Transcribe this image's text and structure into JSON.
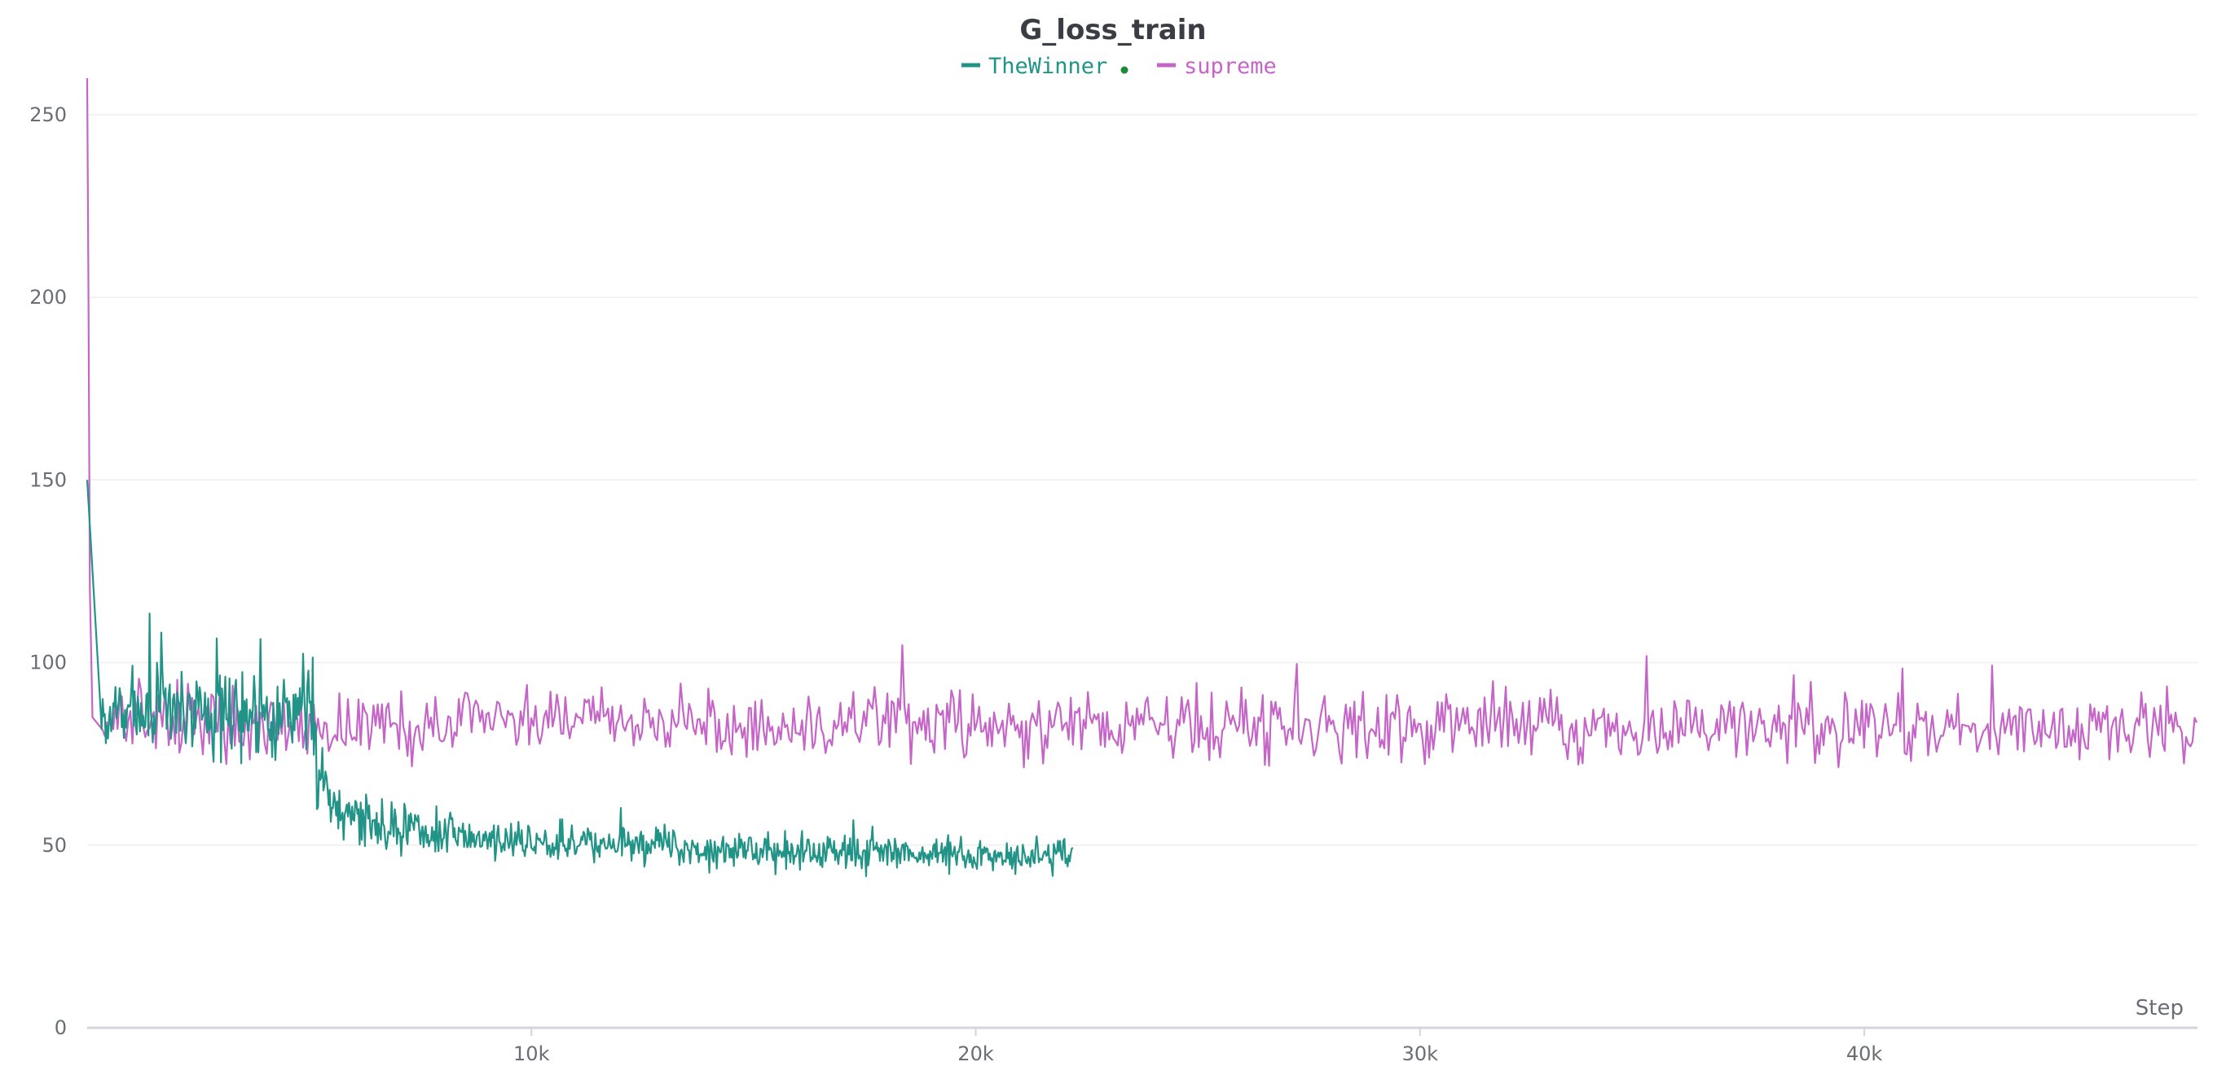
{
  "chart_data": {
    "type": "line",
    "title": "G_loss_train",
    "xlabel": "Step",
    "ylabel": "",
    "xlim": [
      0,
      47500
    ],
    "ylim": [
      0,
      260
    ],
    "x_ticks": [
      10000,
      20000,
      30000,
      40000
    ],
    "x_tick_labels": [
      "10k",
      "20k",
      "30k",
      "40k"
    ],
    "y_ticks": [
      0,
      50,
      100,
      150,
      200,
      250
    ],
    "grid": true,
    "legend_position": "top-center",
    "series": [
      {
        "name": "TheWinner",
        "color": "#229487",
        "x": [
          0,
          150,
          400,
          800,
          1200,
          1600,
          2000,
          2500,
          3000,
          3500,
          4000,
          4400,
          4800,
          5000,
          5200,
          5500,
          6000,
          6500,
          7000,
          7500,
          8000,
          8500,
          9000,
          9500,
          10000,
          11000,
          12000,
          13000,
          14000,
          15000,
          16000,
          17000,
          18000,
          19000,
          20000,
          21000,
          22000,
          22200
        ],
        "y": [
          150,
          85,
          84,
          86,
          87,
          86,
          88,
          87,
          86,
          86,
          87,
          86,
          86,
          84,
          72,
          62,
          58,
          56,
          55,
          54,
          53,
          52.5,
          52,
          51.5,
          51,
          50.5,
          50,
          49.5,
          49,
          48.5,
          48.3,
          48,
          47.8,
          47.5,
          47.3,
          47.2,
          47,
          47
        ]
      },
      {
        "name": "supreme",
        "color": "#c565c7",
        "x": [
          0,
          30,
          60,
          120,
          300,
          1000,
          3000,
          5000,
          10000,
          20000,
          30000,
          40000,
          47500
        ],
        "y": [
          260,
          200,
          120,
          85,
          83,
          84,
          83.5,
          83,
          83,
          82.5,
          82.5,
          82.5,
          82
        ]
      }
    ]
  }
}
